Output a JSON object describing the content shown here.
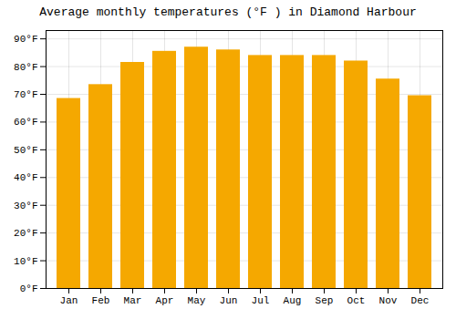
{
  "chart_data": {
    "type": "bar",
    "title": "Average monthly temperatures (°F ) in Diamond Harbour",
    "categories": [
      "Jan",
      "Feb",
      "Mar",
      "Apr",
      "May",
      "Jun",
      "Jul",
      "Aug",
      "Sep",
      "Oct",
      "Nov",
      "Dec"
    ],
    "values": [
      68.5,
      73.5,
      81.5,
      85.5,
      87.0,
      86.0,
      84.0,
      84.0,
      84.0,
      82.0,
      75.5,
      69.5
    ],
    "color": "#F5A800",
    "ylim": [
      0,
      93
    ],
    "yticks": [
      {
        "value": 0,
        "label": "0°F"
      },
      {
        "value": 10,
        "label": "10°F"
      },
      {
        "value": 20,
        "label": "20°F"
      },
      {
        "value": 30,
        "label": "30°F"
      },
      {
        "value": 40,
        "label": "40°F"
      },
      {
        "value": 50,
        "label": "50°F"
      },
      {
        "value": 60,
        "label": "60°F"
      },
      {
        "value": 70,
        "label": "70°F"
      },
      {
        "value": 80,
        "label": "80°F"
      },
      {
        "value": 90,
        "label": "90°F"
      }
    ],
    "grid": true
  }
}
